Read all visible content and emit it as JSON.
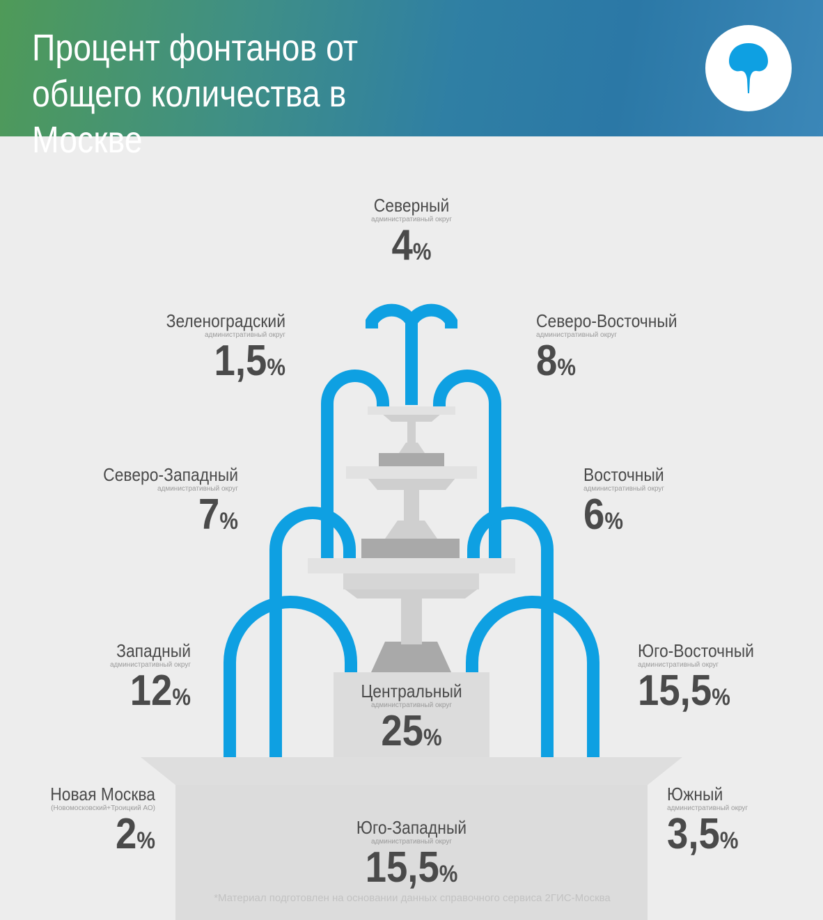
{
  "header": {
    "title": "Процент фонтанов от общего количества в Москве"
  },
  "colors": {
    "header_start": "#4f9a58",
    "header_end": "#2b78a6",
    "water": "#0ea0e2",
    "text": "#4a4a4a",
    "basin_light": "#dedede",
    "basin_dark": "#c8c8c8"
  },
  "chart_data": {
    "type": "pie",
    "title": "Процент фонтанов от общего количества в Москве",
    "unit": "%",
    "categories": [
      {
        "name": "Северный",
        "subtitle": "административный округ",
        "value": 4,
        "label": "4"
      },
      {
        "name": "Зеленоградский",
        "subtitle": "административный округ",
        "value": 1.5,
        "label": "1,5"
      },
      {
        "name": "Северо-Восточный",
        "subtitle": "административный округ",
        "value": 8,
        "label": "8"
      },
      {
        "name": "Северо-Западный",
        "subtitle": "административный округ",
        "value": 7,
        "label": "7"
      },
      {
        "name": "Восточный",
        "subtitle": "административный округ",
        "value": 6,
        "label": "6"
      },
      {
        "name": "Западный",
        "subtitle": "административный округ",
        "value": 12,
        "label": "12"
      },
      {
        "name": "Центральный",
        "subtitle": "административный округ",
        "value": 25,
        "label": "25"
      },
      {
        "name": "Юго-Восточный",
        "subtitle": "административный округ",
        "value": 15.5,
        "label": "15,5"
      },
      {
        "name": "Новая Москва",
        "subtitle": "(Новомосковский+Троицкий АО)",
        "value": 2,
        "label": "2"
      },
      {
        "name": "Юго-Западный",
        "subtitle": "административный округ",
        "value": 15.5,
        "label": "15,5"
      },
      {
        "name": "Южный",
        "subtitle": "административный округ",
        "value": 3.5,
        "label": "3,5"
      }
    ]
  },
  "footnote": "*Материал подготовлен на основании данных справочного сервиса 2ГИС-Москва"
}
